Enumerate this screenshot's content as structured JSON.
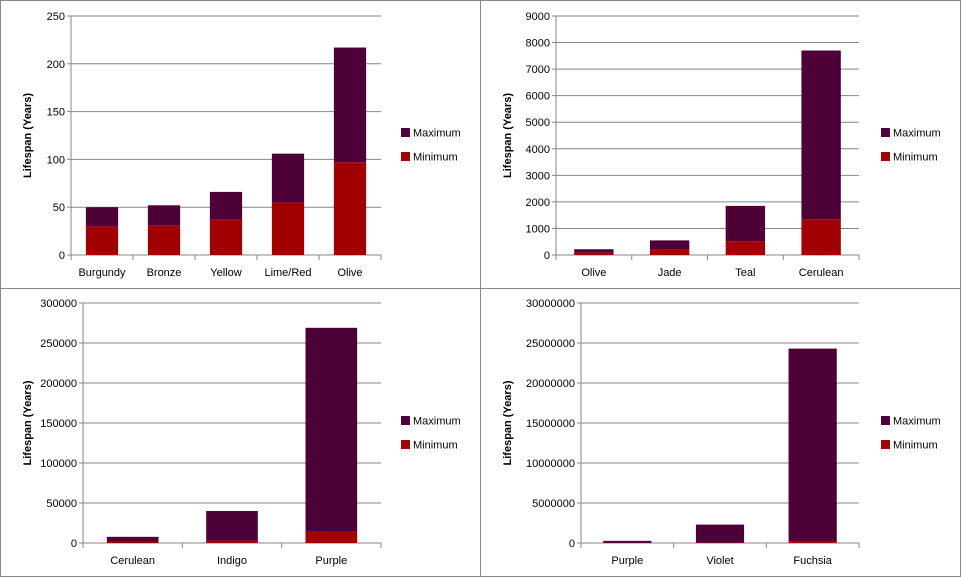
{
  "chart_data": [
    {
      "type": "bar",
      "stacked": true,
      "ylabel": "Lifespan (Years)",
      "categories": [
        "Burgundy",
        "Bronze",
        "Yellow",
        "Lime/Red",
        "Olive"
      ],
      "ylim": [
        0,
        250
      ],
      "yticks": [
        "0",
        "50",
        "100",
        "150",
        "200",
        "250"
      ],
      "series": [
        {
          "name": "Minimum",
          "color": "#a00000",
          "values": [
            30,
            31,
            37,
            55,
            97
          ]
        },
        {
          "name": "Maximum",
          "color": "#4d0037",
          "values": [
            20,
            21,
            29,
            51,
            120
          ]
        }
      ],
      "legend": [
        "Maximum",
        "Minimum"
      ],
      "legend_position": "right",
      "grid": true
    },
    {
      "type": "bar",
      "stacked": true,
      "ylabel": "Lifespan (Years)",
      "categories": [
        "Olive",
        "Jade",
        "Teal",
        "Cerulean"
      ],
      "ylim": [
        0,
        9000
      ],
      "yticks": [
        "0",
        "1000",
        "2000",
        "3000",
        "4000",
        "5000",
        "6000",
        "7000",
        "8000",
        "9000"
      ],
      "series": [
        {
          "name": "Minimum",
          "color": "#a00000",
          "values": [
            97,
            200,
            500,
            1350
          ]
        },
        {
          "name": "Maximum",
          "color": "#4d0037",
          "values": [
            120,
            350,
            1350,
            6350
          ]
        }
      ],
      "legend": [
        "Maximum",
        "Minimum"
      ],
      "legend_position": "right",
      "grid": true
    },
    {
      "type": "bar",
      "stacked": true,
      "ylabel": "Lifespan (Years)",
      "categories": [
        "Cerulean",
        "Indigo",
        "Purple"
      ],
      "ylim": [
        0,
        300000
      ],
      "yticks": [
        "0",
        "50000",
        "100000",
        "150000",
        "200000",
        "250000",
        "300000"
      ],
      "series": [
        {
          "name": "Minimum",
          "color": "#a00000",
          "values": [
            1350,
            3000,
            15000
          ]
        },
        {
          "name": "Maximum",
          "color": "#4d0037",
          "values": [
            6350,
            37000,
            254000
          ]
        }
      ],
      "legend": [
        "Maximum",
        "Minimum"
      ],
      "legend_position": "right",
      "grid": true
    },
    {
      "type": "bar",
      "stacked": true,
      "ylabel": "Lifespan (Years)",
      "categories": [
        "Purple",
        "Violet",
        "Fuchsia"
      ],
      "ylim": [
        0,
        30000000
      ],
      "yticks": [
        "0",
        "5000000",
        "10000000",
        "15000000",
        "20000000",
        "25000000",
        "30000000"
      ],
      "series": [
        {
          "name": "Minimum",
          "color": "#a00000",
          "values": [
            15000,
            50000,
            200000
          ]
        },
        {
          "name": "Maximum",
          "color": "#4d0037",
          "values": [
            254000,
            2250000,
            24100000
          ]
        }
      ],
      "legend": [
        "Maximum",
        "Minimum"
      ],
      "legend_position": "right",
      "grid": true
    }
  ]
}
